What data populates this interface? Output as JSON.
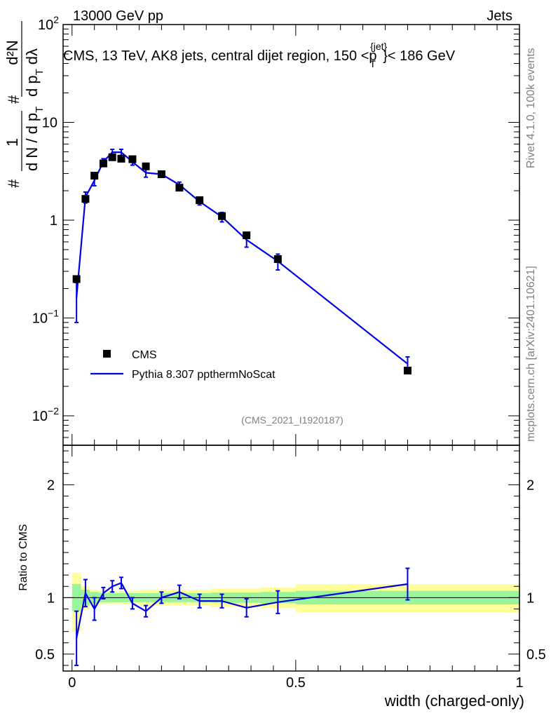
{
  "header": {
    "left": "13000 GeV pp",
    "right": "Jets"
  },
  "side_labels": {
    "rivet": "Rivet 4.1.0,  100k events",
    "mcplots": "mcplots.cern.ch [arXiv:2401.10621]"
  },
  "colors": {
    "mc_line": "#0000e6",
    "data_marker": "#000000",
    "band_inner": "#99f599",
    "band_outer": "#ffff99"
  },
  "chart_data": [
    {
      "type": "scatter",
      "id": "main",
      "title_parts": {
        "before": "CMS, 13 TeV, AK8 jets, central dijet region, 150 <",
        "p": "p",
        "sub": "T",
        "sup": "{jet}",
        "after": "}< 186 GeV"
      },
      "ylabel": {
        "left_num": "1",
        "left_den_main": "d N / d p",
        "left_den_sub": "T",
        "hash": "#",
        "right_num": "d²N",
        "right_den_main": "d p",
        "right_den_sub": "T",
        "right_den_tail": "dλ"
      },
      "yscale": "log",
      "ylim": [
        0.005,
        100
      ],
      "xlim": [
        -0.02,
        1.0
      ],
      "y_ticks": [
        {
          "value": 100,
          "base": "10",
          "exp": "2"
        },
        {
          "value": 10,
          "base": "10",
          "exp": ""
        },
        {
          "value": 1,
          "base": "1",
          "exp": ""
        },
        {
          "value": 0.1,
          "base": "10",
          "exp": "−1"
        },
        {
          "value": 0.01,
          "base": "10",
          "exp": "−2"
        }
      ],
      "analysis_id": "(CMS_2021_I1920187)",
      "legend": [
        {
          "label": "CMS",
          "kind": "marker"
        },
        {
          "label": "Pythia 8.307 ppthermNoScat",
          "kind": "line"
        }
      ],
      "legend_position": "lower-left",
      "series": [
        {
          "name": "CMS",
          "x": [
            0.01,
            0.03,
            0.05,
            0.07,
            0.09,
            0.11,
            0.135,
            0.165,
            0.2,
            0.24,
            0.285,
            0.335,
            0.39,
            0.46,
            0.75
          ],
          "y": [
            0.25,
            1.65,
            2.85,
            3.8,
            4.4,
            4.25,
            4.2,
            3.55,
            2.95,
            2.15,
            1.6,
            1.1,
            0.7,
            0.4,
            0.029
          ]
        },
        {
          "name": "Pythia 8.307 ppthermNoScat",
          "x": [
            0.01,
            0.03,
            0.05,
            0.07,
            0.09,
            0.11,
            0.135,
            0.165,
            0.2,
            0.24,
            0.285,
            0.335,
            0.39,
            0.46,
            0.75
          ],
          "y": [
            0.16,
            1.72,
            2.55,
            3.95,
            4.95,
            4.95,
            3.95,
            3.05,
            2.95,
            2.3,
            1.55,
            1.08,
            0.63,
            0.38,
            0.034
          ],
          "err_low": [
            0.07,
            0.22,
            0.3,
            0.3,
            0.35,
            0.35,
            0.3,
            0.3,
            0.15,
            0.15,
            0.12,
            0.12,
            0.1,
            0.07,
            0.006
          ],
          "err_high": [
            0.07,
            0.22,
            0.3,
            0.3,
            0.35,
            0.35,
            0.3,
            0.3,
            0.15,
            0.15,
            0.12,
            0.12,
            0.1,
            0.07,
            0.006
          ]
        }
      ]
    },
    {
      "type": "line",
      "id": "ratio",
      "ylabel": "Ratio to CMS",
      "xlabel": "width (charged-only)",
      "xlim": [
        -0.02,
        1.0
      ],
      "ylim": [
        0.35,
        2.35
      ],
      "x_ticks": [
        {
          "value": 0,
          "label": "0"
        },
        {
          "value": 0.5,
          "label": "0.5"
        },
        {
          "value": 1,
          "label": "1"
        }
      ],
      "y_ticks": [
        {
          "value": 0.5,
          "label": "0.5"
        },
        {
          "value": 1,
          "label": "1"
        },
        {
          "value": 2,
          "label": "2"
        }
      ],
      "bands": [
        {
          "x0": 0.0,
          "x1": 0.02,
          "inner": [
            0.88,
            1.12
          ],
          "outer": [
            0.7,
            1.22
          ]
        },
        {
          "x0": 0.02,
          "x1": 0.04,
          "inner": [
            0.93,
            1.07
          ],
          "outer": [
            0.9,
            1.1
          ]
        },
        {
          "x0": 0.04,
          "x1": 0.06,
          "inner": [
            0.95,
            1.05
          ],
          "outer": [
            0.93,
            1.07
          ]
        },
        {
          "x0": 0.06,
          "x1": 0.08,
          "inner": [
            0.96,
            1.04
          ],
          "outer": [
            0.94,
            1.06
          ]
        },
        {
          "x0": 0.08,
          "x1": 0.1,
          "inner": [
            0.96,
            1.04
          ],
          "outer": [
            0.94,
            1.06
          ]
        },
        {
          "x0": 0.1,
          "x1": 0.12,
          "inner": [
            0.96,
            1.04
          ],
          "outer": [
            0.94,
            1.06
          ]
        },
        {
          "x0": 0.12,
          "x1": 0.15,
          "inner": [
            0.96,
            1.04
          ],
          "outer": [
            0.94,
            1.06
          ]
        },
        {
          "x0": 0.15,
          "x1": 0.18,
          "inner": [
            0.96,
            1.04
          ],
          "outer": [
            0.93,
            1.07
          ]
        },
        {
          "x0": 0.18,
          "x1": 0.22,
          "inner": [
            0.96,
            1.04
          ],
          "outer": [
            0.93,
            1.07
          ]
        },
        {
          "x0": 0.22,
          "x1": 0.26,
          "inner": [
            0.96,
            1.04
          ],
          "outer": [
            0.93,
            1.07
          ]
        },
        {
          "x0": 0.26,
          "x1": 0.31,
          "inner": [
            0.96,
            1.04
          ],
          "outer": [
            0.93,
            1.07
          ]
        },
        {
          "x0": 0.31,
          "x1": 0.36,
          "inner": [
            0.955,
            1.045
          ],
          "outer": [
            0.92,
            1.08
          ]
        },
        {
          "x0": 0.36,
          "x1": 0.42,
          "inner": [
            0.955,
            1.045
          ],
          "outer": [
            0.92,
            1.08
          ]
        },
        {
          "x0": 0.42,
          "x1": 0.5,
          "inner": [
            0.95,
            1.05
          ],
          "outer": [
            0.91,
            1.09
          ]
        },
        {
          "x0": 0.5,
          "x1": 1.0,
          "inner": [
            0.94,
            1.06
          ],
          "outer": [
            0.87,
            1.12
          ]
        }
      ],
      "series": [
        {
          "name": "Pythia 8.307 ppthermNoScat / CMS",
          "x": [
            0.01,
            0.03,
            0.05,
            0.07,
            0.09,
            0.11,
            0.135,
            0.165,
            0.2,
            0.24,
            0.285,
            0.335,
            0.39,
            0.46,
            0.75
          ],
          "y": [
            0.64,
            1.04,
            0.9,
            1.04,
            1.1,
            1.13,
            0.95,
            0.88,
            1.0,
            1.05,
            0.97,
            0.97,
            0.91,
            0.96,
            1.12
          ],
          "err_low": [
            0.24,
            0.12,
            0.1,
            0.05,
            0.05,
            0.05,
            0.05,
            0.05,
            0.05,
            0.06,
            0.06,
            0.06,
            0.08,
            0.1,
            0.14
          ],
          "err_high": [
            0.24,
            0.12,
            0.1,
            0.05,
            0.05,
            0.05,
            0.05,
            0.05,
            0.05,
            0.06,
            0.06,
            0.06,
            0.08,
            0.1,
            0.14
          ]
        }
      ]
    }
  ]
}
